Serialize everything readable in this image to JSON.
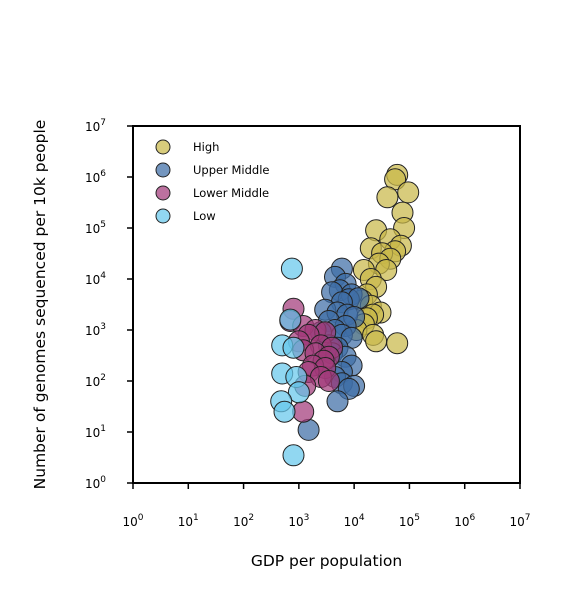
{
  "chart_data": {
    "type": "scatter",
    "xlabel": "GDP per population",
    "ylabel": "Number of genomes sequenced per 10k people",
    "x_scale": "log",
    "y_scale": "log",
    "xlim": [
      1,
      10000000
    ],
    "ylim": [
      1,
      10000000
    ],
    "x_ticks": [
      {
        "base": "10",
        "exp": "0",
        "value": 1
      },
      {
        "base": "10",
        "exp": "1",
        "value": 10
      },
      {
        "base": "10",
        "exp": "2",
        "value": 100
      },
      {
        "base": "10",
        "exp": "3",
        "value": 1000
      },
      {
        "base": "10",
        "exp": "4",
        "value": 10000
      },
      {
        "base": "10",
        "exp": "5",
        "value": 100000
      },
      {
        "base": "10",
        "exp": "6",
        "value": 1000000
      },
      {
        "base": "10",
        "exp": "7",
        "value": 10000000
      }
    ],
    "y_ticks": [
      {
        "base": "10",
        "exp": "0",
        "value": 1
      },
      {
        "base": "10",
        "exp": "1",
        "value": 10
      },
      {
        "base": "10",
        "exp": "2",
        "value": 100
      },
      {
        "base": "10",
        "exp": "3",
        "value": 1000
      },
      {
        "base": "10",
        "exp": "4",
        "value": 10000
      },
      {
        "base": "10",
        "exp": "5",
        "value": 100000
      },
      {
        "base": "10",
        "exp": "6",
        "value": 1000000
      },
      {
        "base": "10",
        "exp": "7",
        "value": 10000000
      }
    ],
    "grid": false,
    "legend_position": "top-left",
    "series": [
      {
        "name": "High",
        "color": "#c9b84a",
        "points": [
          [
            60000,
            1100000
          ],
          [
            55000,
            900000
          ],
          [
            95000,
            500000
          ],
          [
            40000,
            400000
          ],
          [
            75000,
            200000
          ],
          [
            80000,
            100000
          ],
          [
            25000,
            90000
          ],
          [
            45000,
            60000
          ],
          [
            70000,
            45000
          ],
          [
            20000,
            40000
          ],
          [
            55000,
            35000
          ],
          [
            32000,
            32000
          ],
          [
            45000,
            25000
          ],
          [
            28000,
            20000
          ],
          [
            38000,
            15000
          ],
          [
            15000,
            15000
          ],
          [
            20000,
            10000
          ],
          [
            25000,
            7000
          ],
          [
            17000,
            5000
          ],
          [
            14000,
            3800
          ],
          [
            20000,
            3000
          ],
          [
            30000,
            2200
          ],
          [
            22000,
            2000
          ],
          [
            17000,
            1700
          ],
          [
            15000,
            1300
          ],
          [
            11000,
            1000
          ],
          [
            22000,
            800
          ],
          [
            25000,
            600
          ],
          [
            60000,
            550
          ]
        ]
      },
      {
        "name": "Upper Middle",
        "color": "#3f6ea6",
        "points": [
          [
            6000,
            16000
          ],
          [
            4500,
            11000
          ],
          [
            7000,
            8000
          ],
          [
            5500,
            6000
          ],
          [
            4000,
            5500
          ],
          [
            9000,
            5000
          ],
          [
            8000,
            4000
          ],
          [
            12000,
            4200
          ],
          [
            6000,
            3500
          ],
          [
            3000,
            2500
          ],
          [
            5000,
            2200
          ],
          [
            7500,
            2000
          ],
          [
            10000,
            1800
          ],
          [
            3500,
            1500
          ],
          [
            7000,
            1200
          ],
          [
            4500,
            1000
          ],
          [
            2500,
            900
          ],
          [
            6000,
            800
          ],
          [
            9000,
            700
          ],
          [
            3500,
            500
          ],
          [
            5000,
            450
          ],
          [
            4000,
            350
          ],
          [
            7000,
            300
          ],
          [
            9000,
            200
          ],
          [
            6000,
            150
          ],
          [
            4500,
            120
          ],
          [
            6000,
            90
          ],
          [
            10000,
            80
          ],
          [
            8000,
            70
          ],
          [
            5000,
            40
          ],
          [
            1500,
            11
          ]
        ]
      },
      {
        "name": "Lower Middle",
        "color": "#a23a7a",
        "points": [
          [
            800,
            2600
          ],
          [
            700,
            1500
          ],
          [
            1200,
            1200
          ],
          [
            2000,
            1000
          ],
          [
            3000,
            900
          ],
          [
            1500,
            800
          ],
          [
            1000,
            600
          ],
          [
            2500,
            500
          ],
          [
            4000,
            450
          ],
          [
            1200,
            400
          ],
          [
            2000,
            350
          ],
          [
            3500,
            300
          ],
          [
            2800,
            250
          ],
          [
            1800,
            200
          ],
          [
            3000,
            180
          ],
          [
            1500,
            150
          ],
          [
            2500,
            120
          ],
          [
            3500,
            100
          ],
          [
            1300,
            80
          ],
          [
            1200,
            25
          ]
        ]
      },
      {
        "name": "Low",
        "color": "#67c8eb",
        "points": [
          [
            750,
            16000
          ],
          [
            700,
            1600
          ],
          [
            500,
            500
          ],
          [
            800,
            450
          ],
          [
            500,
            140
          ],
          [
            900,
            120
          ],
          [
            1000,
            60
          ],
          [
            480,
            40
          ],
          [
            550,
            25
          ],
          [
            800,
            3.5
          ]
        ]
      }
    ]
  }
}
